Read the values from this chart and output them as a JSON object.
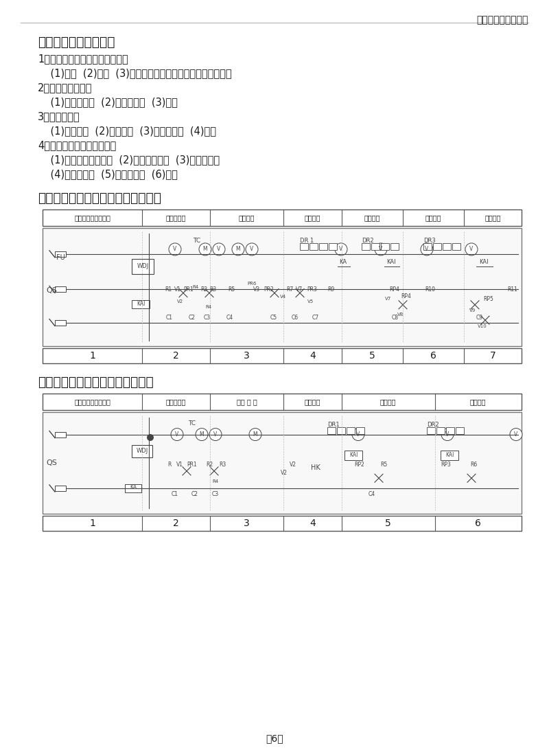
{
  "bg_color": "#ffffff",
  "header_text": "广州飞越包装机械厂",
  "section7_title": "七、简易故障维修指南",
  "section7_items": [
    [
      "bold",
      "1、空气开头跳闸或烧断保险丝："
    ],
    [
      "normal",
      "    (1)漏电  (2)短路  (3)保险丝额定电流与本机额定电流不匹配"
    ],
    [
      "bold",
      "2、发热管不工作："
    ],
    [
      "normal",
      "    (1)发热管损坏  (2)可控硅损坏  (3)断路"
    ],
    [
      "bold",
      "3、风机不转："
    ],
    [
      "normal",
      "    (1)电容损坏  (2)风机损坏  (3)可控硅损坏  (4)断路"
    ],
    [
      "bold",
      "4、输送带不走或不能调速："
    ],
    [
      "normal",
      "    (1)传动机构是否损坏  (2)传动电机损坏  (3)可控硅损坏"
    ],
    [
      "normal",
      "    (4)变压器损坏  (5)整流硅损坏  (6)断路"
    ]
  ],
  "section8_title": "八、整机线路参考图（三相四线图）",
  "section8_headers": [
    "电源开关及过载保护",
    "温度控制器",
    "输送电机",
    "匀热风机",
    "偏发热管",
    "上发热管",
    "下发热管"
  ],
  "section8_col_nums": [
    "1",
    "2",
    "3",
    "4",
    "5",
    "6",
    "7"
  ],
  "section9_title": "九、整机线路参考图（单相机图）",
  "section9_headers": [
    "电源开关及过载保护",
    "温度控制器",
    "输送 电 机",
    "匀热风机",
    "下发热管",
    "上发热管"
  ],
  "section9_col_nums": [
    "1",
    "2",
    "3",
    "4",
    "5",
    "6"
  ],
  "page_num": "－6－",
  "text_color": "#1a1a1a",
  "diagram_color": "#444444",
  "table_border_color": "#555555"
}
